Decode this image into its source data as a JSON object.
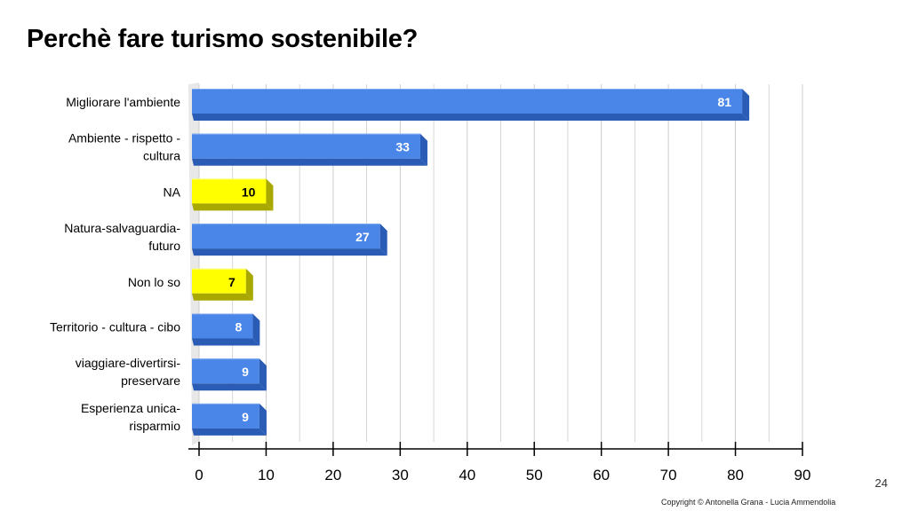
{
  "title": "Perchè fare turismo sostenibile?",
  "page_number": "24",
  "copyright": "Copyright © Antonella Grana - Lucia Ammendolia",
  "colors": {
    "bar_blue": "#4a86e8",
    "bar_blue_top": "#7fa8f0",
    "bar_blue_bottom": "#2a5bb5",
    "bar_yellow": "#ffff00",
    "bar_yellow_top": "#fdfd8c",
    "bar_yellow_bottom": "#a8a800",
    "gridline": "#cccccc",
    "axis": "#000000"
  },
  "chart_data": {
    "type": "bar",
    "orientation": "horizontal",
    "categories": [
      [
        "Migliorare l'ambiente"
      ],
      [
        "Ambiente - rispetto -",
        "cultura"
      ],
      [
        "NA"
      ],
      [
        "Natura-salvaguardia-",
        "futuro"
      ],
      [
        "Non lo so"
      ],
      [
        "Territorio - cultura - cibo"
      ],
      [
        "viaggiare-divertirsi-",
        "preservare"
      ],
      [
        "Esperienza unica-",
        "risparmio"
      ]
    ],
    "values": [
      81,
      33,
      10,
      27,
      7,
      8,
      9,
      9
    ],
    "highlight": [
      false,
      false,
      true,
      false,
      true,
      false,
      false,
      false
    ],
    "xlim": [
      0,
      90
    ],
    "xticks": [
      0,
      10,
      20,
      30,
      40,
      50,
      60,
      70,
      80,
      90
    ],
    "grid": true,
    "data_labels": true
  }
}
